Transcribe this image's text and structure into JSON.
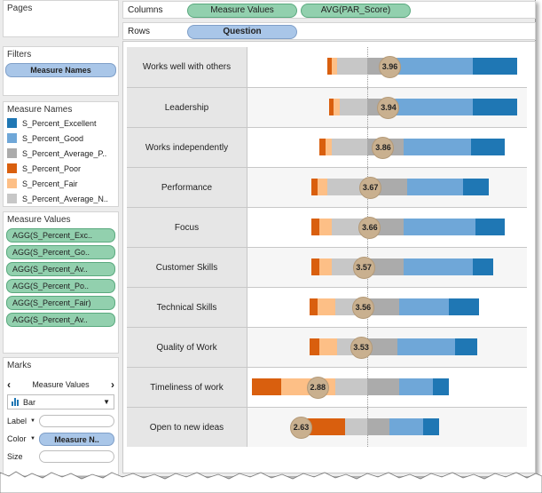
{
  "pages": {
    "title": "Pages"
  },
  "filters": {
    "title": "Filters",
    "pill": "Measure Names"
  },
  "measure_names": {
    "title": "Measure Names",
    "items": [
      {
        "label": "S_Percent_Excellent",
        "color": "#1f77b4"
      },
      {
        "label": "S_Percent_Good",
        "color": "#6fa7d8"
      },
      {
        "label": "S_Percent_Average_P..",
        "color": "#ababab"
      },
      {
        "label": "S_Percent_Poor",
        "color": "#d95f0e"
      },
      {
        "label": "S_Percent_Fair",
        "color": "#fdbf86"
      },
      {
        "label": "S_Percent_Average_N..",
        "color": "#c7c7c7"
      }
    ]
  },
  "measure_values": {
    "title": "Measure Values",
    "items": [
      "AGG(S_Percent_Exc..",
      "AGG(S_Percent_Go..",
      "AGG(S_Percent_Av..",
      "AGG(S_Percent_Po..",
      "AGG(S_Percent_Fair)",
      "AGG(S_Percent_Av.."
    ]
  },
  "marks": {
    "title": "Marks",
    "nav_label": "Measure Values",
    "mark_type": "Bar",
    "label_label": "Label",
    "color_label": "Color",
    "color_pill": "Measure N..",
    "size_label": "Size"
  },
  "shelves": {
    "columns_label": "Columns",
    "columns_pills": [
      "Measure Values",
      "AVG(PAR_Score)"
    ],
    "rows_label": "Rows",
    "rows_pills": [
      "Question"
    ]
  },
  "chart_data": {
    "type": "bar",
    "subtype": "diverging stacked bar with average score markers",
    "categories": [
      "Works well with others",
      "Leadership",
      "Works independently",
      "Performance",
      "Focus",
      "Customer Skills",
      "Technical Skills",
      "Quality of Work",
      "Timeliness of work",
      "Open to new ideas"
    ],
    "segment_order": [
      "S_Percent_Poor",
      "S_Percent_Fair",
      "S_Percent_Average_N..",
      "S_Percent_Average_P..",
      "S_Percent_Good",
      "S_Percent_Excellent"
    ],
    "series": [
      {
        "name": "S_Percent_Poor",
        "values": [
          2,
          2,
          3,
          3,
          4,
          4,
          4,
          5,
          15,
          22
        ]
      },
      {
        "name": "S_Percent_Fair",
        "values": [
          3,
          3,
          3,
          5,
          6,
          6,
          9,
          9,
          27,
          0
        ]
      },
      {
        "name": "S_Percent_Average_N..",
        "values": [
          15,
          14,
          18,
          20,
          18,
          18,
          16,
          15,
          16,
          11
        ]
      },
      {
        "name": "S_Percent_Average_P..",
        "values": [
          15,
          14,
          18,
          20,
          18,
          18,
          16,
          15,
          16,
          11
        ]
      },
      {
        "name": "S_Percent_Good",
        "values": [
          38,
          39,
          34,
          28,
          36,
          35,
          25,
          29,
          17,
          17
        ]
      },
      {
        "name": "S_Percent_Excellent",
        "values": [
          22,
          22,
          17,
          13,
          15,
          10,
          15,
          11,
          8,
          8
        ]
      }
    ],
    "avg_par_score": [
      3.96,
      3.94,
      3.86,
      3.67,
      3.66,
      3.57,
      3.56,
      3.53,
      2.88,
      2.63
    ],
    "ylim": [
      -60,
      80
    ],
    "reference_line_at": 0,
    "grid": false,
    "xlabel": "",
    "ylabel": ""
  }
}
